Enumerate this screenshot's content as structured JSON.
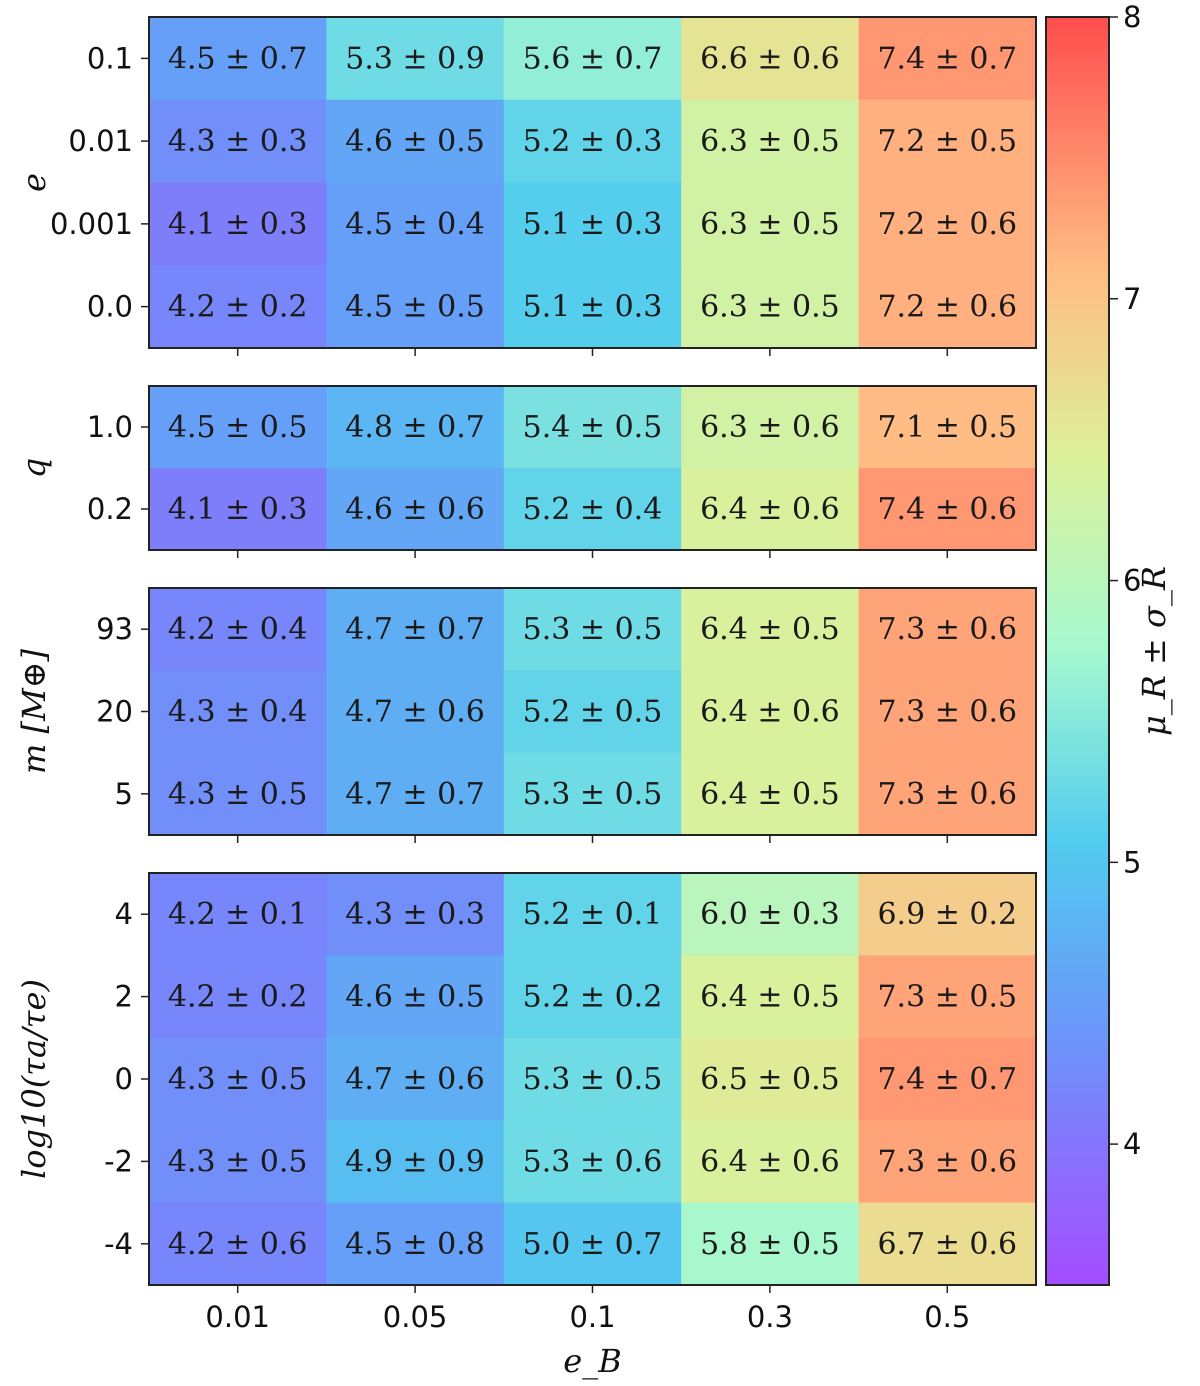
{
  "chart_data": {
    "type": "heatmap",
    "xlabel": "e_B",
    "x_categories": [
      "0.01",
      "0.05",
      "0.1",
      "0.3",
      "0.5"
    ],
    "colorbar": {
      "label": "μ_R ± σ_R",
      "range": [
        3.5,
        8
      ],
      "ticks": [
        "4",
        "5",
        "6",
        "7",
        "8"
      ]
    },
    "panels": [
      {
        "ylabel": "e",
        "rows": [
          {
            "label": "0.1",
            "cells": [
              {
                "mu": 4.5,
                "text": "4.5 ± 0.7"
              },
              {
                "mu": 5.3,
                "text": "5.3 ± 0.9"
              },
              {
                "mu": 5.6,
                "text": "5.6 ± 0.7"
              },
              {
                "mu": 6.6,
                "text": "6.6 ± 0.6"
              },
              {
                "mu": 7.4,
                "text": "7.4 ± 0.7"
              }
            ]
          },
          {
            "label": "0.01",
            "cells": [
              {
                "mu": 4.3,
                "text": "4.3 ± 0.3"
              },
              {
                "mu": 4.6,
                "text": "4.6 ± 0.5"
              },
              {
                "mu": 5.2,
                "text": "5.2 ± 0.3"
              },
              {
                "mu": 6.3,
                "text": "6.3 ± 0.5"
              },
              {
                "mu": 7.2,
                "text": "7.2 ± 0.5"
              }
            ]
          },
          {
            "label": "0.001",
            "cells": [
              {
                "mu": 4.1,
                "text": "4.1 ± 0.3"
              },
              {
                "mu": 4.5,
                "text": "4.5 ± 0.4"
              },
              {
                "mu": 5.1,
                "text": "5.1 ± 0.3"
              },
              {
                "mu": 6.3,
                "text": "6.3 ± 0.5"
              },
              {
                "mu": 7.2,
                "text": "7.2 ± 0.6"
              }
            ]
          },
          {
            "label": "0.0",
            "cells": [
              {
                "mu": 4.2,
                "text": "4.2 ± 0.2"
              },
              {
                "mu": 4.5,
                "text": "4.5 ± 0.5"
              },
              {
                "mu": 5.1,
                "text": "5.1 ± 0.3"
              },
              {
                "mu": 6.3,
                "text": "6.3 ± 0.5"
              },
              {
                "mu": 7.2,
                "text": "7.2 ± 0.6"
              }
            ]
          }
        ]
      },
      {
        "ylabel": "q",
        "rows": [
          {
            "label": "1.0",
            "cells": [
              {
                "mu": 4.5,
                "text": "4.5 ± 0.5"
              },
              {
                "mu": 4.8,
                "text": "4.8 ± 0.7"
              },
              {
                "mu": 5.4,
                "text": "5.4 ± 0.5"
              },
              {
                "mu": 6.3,
                "text": "6.3 ± 0.6"
              },
              {
                "mu": 7.1,
                "text": "7.1 ± 0.5"
              }
            ]
          },
          {
            "label": "0.2",
            "cells": [
              {
                "mu": 4.1,
                "text": "4.1 ± 0.3"
              },
              {
                "mu": 4.6,
                "text": "4.6 ± 0.6"
              },
              {
                "mu": 5.2,
                "text": "5.2 ± 0.4"
              },
              {
                "mu": 6.4,
                "text": "6.4 ± 0.6"
              },
              {
                "mu": 7.4,
                "text": "7.4 ± 0.6"
              }
            ]
          }
        ]
      },
      {
        "ylabel": "m [M⊕]",
        "rows": [
          {
            "label": "93",
            "cells": [
              {
                "mu": 4.2,
                "text": "4.2 ± 0.4"
              },
              {
                "mu": 4.7,
                "text": "4.7 ± 0.7"
              },
              {
                "mu": 5.3,
                "text": "5.3 ± 0.5"
              },
              {
                "mu": 6.4,
                "text": "6.4 ± 0.5"
              },
              {
                "mu": 7.3,
                "text": "7.3 ± 0.6"
              }
            ]
          },
          {
            "label": "20",
            "cells": [
              {
                "mu": 4.3,
                "text": "4.3 ± 0.4"
              },
              {
                "mu": 4.7,
                "text": "4.7 ± 0.6"
              },
              {
                "mu": 5.2,
                "text": "5.2 ± 0.5"
              },
              {
                "mu": 6.4,
                "text": "6.4 ± 0.6"
              },
              {
                "mu": 7.3,
                "text": "7.3 ± 0.6"
              }
            ]
          },
          {
            "label": "5",
            "cells": [
              {
                "mu": 4.3,
                "text": "4.3 ± 0.5"
              },
              {
                "mu": 4.7,
                "text": "4.7 ± 0.7"
              },
              {
                "mu": 5.3,
                "text": "5.3 ± 0.5"
              },
              {
                "mu": 6.4,
                "text": "6.4 ± 0.5"
              },
              {
                "mu": 7.3,
                "text": "7.3 ± 0.6"
              }
            ]
          }
        ]
      },
      {
        "ylabel": "log10(τa/τe)",
        "rows": [
          {
            "label": "4",
            "cells": [
              {
                "mu": 4.2,
                "text": "4.2 ± 0.1"
              },
              {
                "mu": 4.3,
                "text": "4.3 ± 0.3"
              },
              {
                "mu": 5.2,
                "text": "5.2 ± 0.1"
              },
              {
                "mu": 6.0,
                "text": "6.0 ± 0.3"
              },
              {
                "mu": 6.9,
                "text": "6.9 ± 0.2"
              }
            ]
          },
          {
            "label": "2",
            "cells": [
              {
                "mu": 4.2,
                "text": "4.2 ± 0.2"
              },
              {
                "mu": 4.6,
                "text": "4.6 ± 0.5"
              },
              {
                "mu": 5.2,
                "text": "5.2 ± 0.2"
              },
              {
                "mu": 6.4,
                "text": "6.4 ± 0.5"
              },
              {
                "mu": 7.3,
                "text": "7.3 ± 0.5"
              }
            ]
          },
          {
            "label": "0",
            "cells": [
              {
                "mu": 4.3,
                "text": "4.3 ± 0.5"
              },
              {
                "mu": 4.7,
                "text": "4.7 ± 0.6"
              },
              {
                "mu": 5.3,
                "text": "5.3 ± 0.5"
              },
              {
                "mu": 6.5,
                "text": "6.5 ± 0.5"
              },
              {
                "mu": 7.4,
                "text": "7.4 ± 0.7"
              }
            ]
          },
          {
            "label": "-2",
            "cells": [
              {
                "mu": 4.3,
                "text": "4.3 ± 0.5"
              },
              {
                "mu": 4.9,
                "text": "4.9 ± 0.9"
              },
              {
                "mu": 5.3,
                "text": "5.3 ± 0.6"
              },
              {
                "mu": 6.4,
                "text": "6.4 ± 0.6"
              },
              {
                "mu": 7.3,
                "text": "7.3 ± 0.6"
              }
            ]
          },
          {
            "label": "-4",
            "cells": [
              {
                "mu": 4.2,
                "text": "4.2 ± 0.6"
              },
              {
                "mu": 4.5,
                "text": "4.5 ± 0.8"
              },
              {
                "mu": 5.0,
                "text": "5.0 ± 0.7"
              },
              {
                "mu": 5.8,
                "text": "5.8 ± 0.5"
              },
              {
                "mu": 6.7,
                "text": "6.7 ± 0.6"
              }
            ]
          }
        ]
      }
    ]
  }
}
